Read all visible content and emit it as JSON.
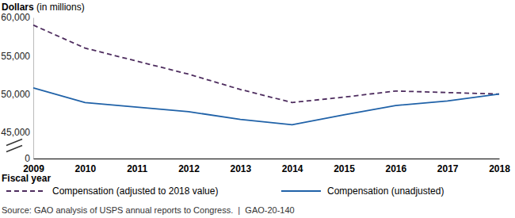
{
  "chart_data": {
    "type": "line",
    "y_label": "Dollars (in millions)",
    "x_label": "Fiscal year",
    "source": "Source: GAO analysis of USPS annual reports to Congress.  |  GAO-20-140",
    "categories": [
      "2009",
      "2010",
      "2011",
      "2012",
      "2013",
      "2014",
      "2015",
      "2016",
      "2017",
      "2018"
    ],
    "series": [
      {
        "name": "Compensation (adjusted to 2018 value)",
        "color": "#4d2c5e",
        "line_style": "dashed",
        "values": [
          59000,
          56000,
          54300,
          52600,
          50600,
          48900,
          49600,
          50400,
          50200,
          50000
        ]
      },
      {
        "name": "Compensation (unadjusted)",
        "color": "#2062a8",
        "line_style": "solid",
        "values": [
          50800,
          48900,
          48300,
          47700,
          46700,
          46000,
          47300,
          48500,
          49100,
          50000
        ]
      }
    ],
    "ylim": [
      0,
      60000
    ],
    "yticks": [
      0,
      {
        "value": 45000,
        "label": "45,000"
      },
      {
        "value": 50000,
        "label": "50,000"
      },
      {
        "value": 55000,
        "label": "55,000"
      },
      {
        "value": 60000,
        "label": "60,000"
      }
    ],
    "legend": "bottom"
  }
}
